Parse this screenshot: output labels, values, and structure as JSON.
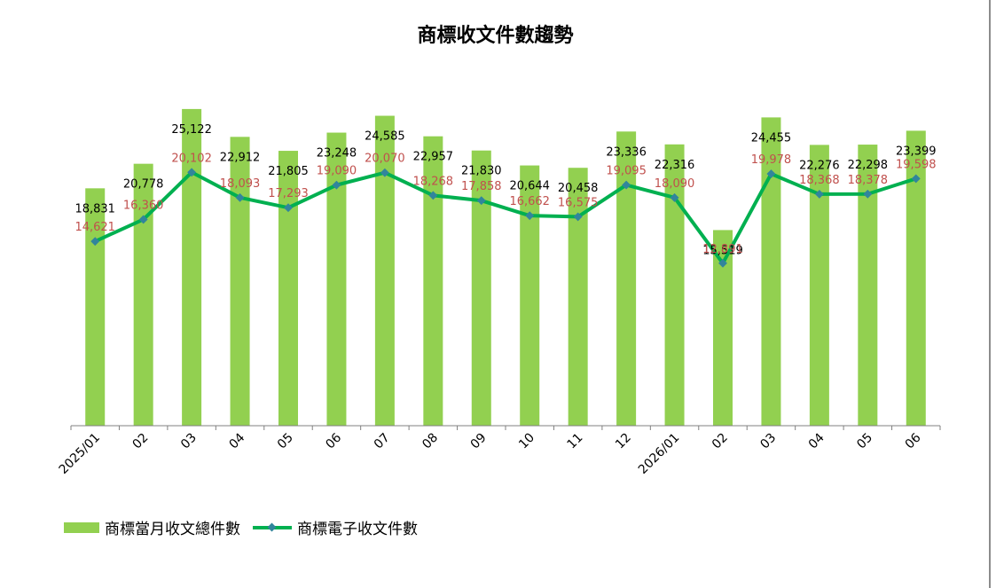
{
  "chart_data": {
    "type": "bar",
    "title": "商標收文件數趨勢",
    "categories": [
      "2025/01",
      "02",
      "03",
      "04",
      "05",
      "06",
      "07",
      "08",
      "09",
      "10",
      "11",
      "12",
      "2026/01",
      "02",
      "03",
      "04",
      "05",
      "06"
    ],
    "series": [
      {
        "name": "商標當月收文總件數",
        "type": "bar",
        "color": "#92d050",
        "values": [
          18831,
          20778,
          25122,
          22912,
          21805,
          23248,
          24585,
          22957,
          21830,
          20644,
          20458,
          23336,
          22316,
          15519,
          24455,
          22276,
          22298,
          23399
        ]
      },
      {
        "name": "商標電子收文件數",
        "type": "line",
        "color": "#00b050",
        "marker_color": "#31859c",
        "values": [
          14621,
          16360,
          20102,
          18093,
          17293,
          19090,
          20070,
          18268,
          17858,
          16662,
          16575,
          19095,
          18090,
          12891,
          19978,
          18368,
          18378,
          19598
        ]
      }
    ],
    "label_colors": {
      "bar": "#000000",
      "line": "#c0504d"
    },
    "ylim": [
      0,
      28000
    ],
    "grid": false,
    "legend_position": "bottom-left"
  }
}
